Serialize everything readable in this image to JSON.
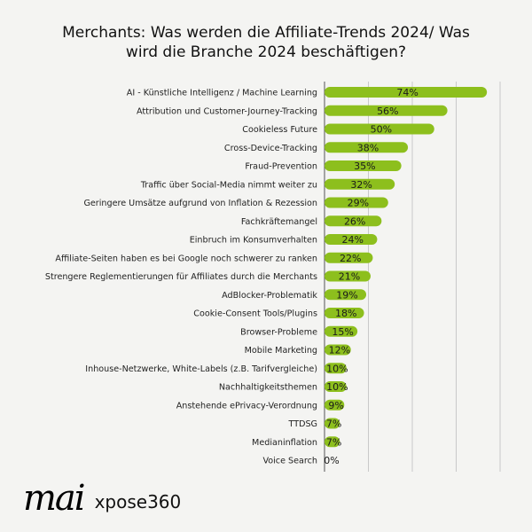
{
  "title_line1": "Merchants: Was werden die Affiliate-Trends 2024/ Was",
  "title_line2": "wird die Branche 2024 beschäftigen?",
  "logo": {
    "mark": "mai",
    "brand": "xpose360"
  },
  "colors": {
    "bar": "#8dbf1d",
    "grid": "#c9c9c9",
    "axis": "#555555",
    "background": "#f4f4f2"
  },
  "chart_data": {
    "type": "bar",
    "orientation": "horizontal",
    "title": "Merchants: Was werden die Affiliate-Trends 2024/ Was wird die Branche 2024 beschäftigen?",
    "categories": [
      "AI - Künstliche Intelligenz / Machine Learning",
      "Attribution und Customer-Journey-Tracking",
      "Cookieless Future",
      "Cross-Device-Tracking",
      "Fraud-Prevention",
      "Traffic über Social-Media nimmt weiter zu",
      "Geringere Umsätze aufgrund von Inflation & Rezession",
      "Fachkräftemangel",
      "Einbruch im Konsumverhalten",
      "Affiliate-Seiten haben es bei Google noch schwerer zu ranken",
      "Strengere Reglementierungen für Affiliates durch die Merchants",
      "AdBlocker-Problematik",
      "Cookie-Consent Tools/Plugins",
      "Browser-Probleme",
      "Mobile Marketing",
      "Inhouse-Netzwerke, White-Labels (z.B. Tarifvergleiche)",
      "Nachhaltigkeitsthemen",
      "Anstehende ePrivacy-Verordnung",
      "TTDSG",
      "Medianinflation",
      "Voice Search"
    ],
    "values": [
      74,
      56,
      50,
      38,
      35,
      32,
      29,
      26,
      24,
      22,
      21,
      19,
      18,
      15,
      12,
      10,
      10,
      9,
      7,
      7,
      0
    ],
    "value_labels": [
      "74%",
      "56%",
      "50%",
      "38%",
      "35%",
      "32%",
      "29%",
      "26%",
      "24%",
      "22%",
      "21%",
      "19%",
      "18%",
      "15%",
      "12%",
      "10%",
      "10%",
      "9%",
      "7%",
      "7%",
      "0%"
    ],
    "xlim": [
      0,
      80
    ],
    "grid": true
  }
}
